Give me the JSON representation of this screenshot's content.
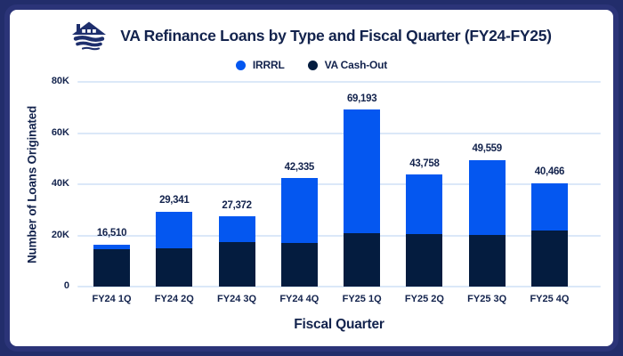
{
  "header": {
    "title": "VA Refinance Loans by Type and Fiscal Quarter (FY24-FY25)",
    "icon": "house-over-waves-icon"
  },
  "colors": {
    "irrrl_blue": "#0457f0",
    "cashout_navy": "#041c3f",
    "text_navy": "#13234d",
    "card_border_navy": "#2b3478",
    "gridline_blue": "#dbe8f8"
  },
  "chart_data": {
    "type": "bar",
    "stacked": true,
    "title": "VA Refinance Loans by Type and Fiscal Quarter (FY24-FY25)",
    "xlabel": "Fiscal Quarter",
    "ylabel": "Number of Loans Originated",
    "ylim": [
      0,
      80000
    ],
    "grid": true,
    "legend_position": "top",
    "yticks": [
      {
        "label": "0",
        "value": 0
      },
      {
        "label": "20K",
        "value": 20000
      },
      {
        "label": "40K",
        "value": 40000
      },
      {
        "label": "60K",
        "value": 60000
      },
      {
        "label": "80K",
        "value": 80000
      }
    ],
    "categories": [
      "FY24 1Q",
      "FY24 2Q",
      "FY24 3Q",
      "FY24 4Q",
      "FY25 1Q",
      "FY25 2Q",
      "FY25 3Q",
      "FY25 4Q"
    ],
    "series": [
      {
        "name": "IRRRL",
        "color": "#0457f0",
        "values": [
          1910,
          14341,
          9872,
          25135,
          48393,
          23258,
          29359,
          18566
        ]
      },
      {
        "name": "VA Cash-Out",
        "color": "#041c3f",
        "values": [
          14600,
          15000,
          17500,
          17200,
          20800,
          20500,
          20200,
          21900
        ]
      }
    ],
    "totals": [
      16510,
      29341,
      27372,
      42335,
      69193,
      43758,
      49559,
      40466
    ],
    "total_labels": [
      "16,510",
      "29,341",
      "27,372",
      "42,335",
      "69,193",
      "43,758",
      "49,559",
      "40,466"
    ]
  }
}
